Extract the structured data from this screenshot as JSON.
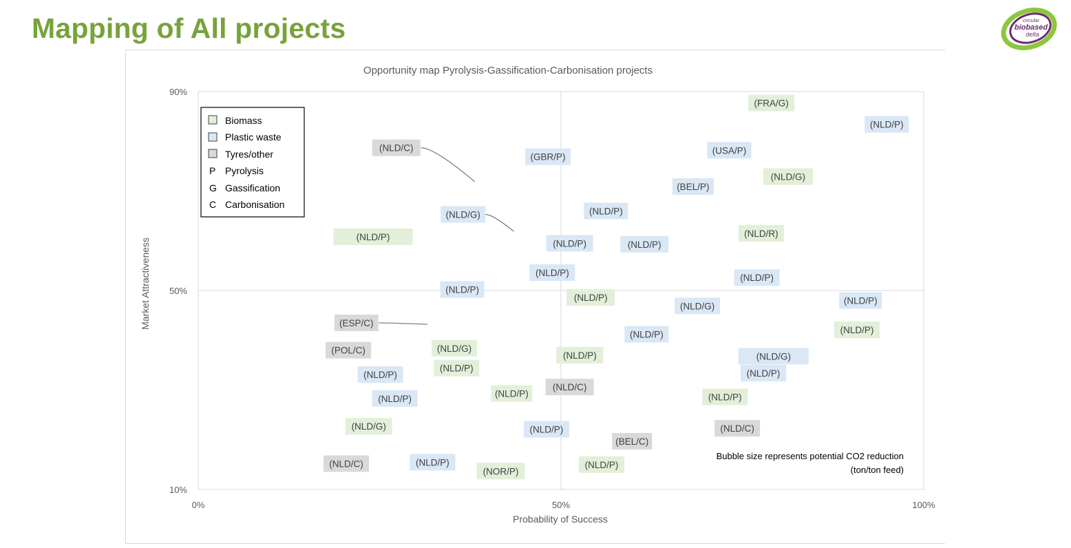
{
  "slide_title": "Mapping of All projects",
  "logo": {
    "line1": "circular",
    "line2": "biobased",
    "line3": "delta"
  },
  "colors": {
    "biomass": "#e2efd9",
    "plastic": "#dae7f5",
    "tyres": "#d9d9d9",
    "title": "#77a33a"
  },
  "chart_data": {
    "type": "scatter",
    "title": "Opportunity map Pyrolysis-Gassification-Carbonisation projects",
    "xlabel": "Probability of Success",
    "ylabel": "Market Attractiveness",
    "xlim": [
      0,
      100
    ],
    "ylim": [
      10,
      90
    ],
    "x_ticks": [
      "0%",
      "50%",
      "100%"
    ],
    "y_ticks": [
      "10%",
      "50%",
      "90%"
    ],
    "legend": {
      "placement": "top-left",
      "items": [
        {
          "symbol": "box",
          "category": "biomass",
          "label": "Biomass"
        },
        {
          "symbol": "box",
          "category": "plastic",
          "label": "Plastic waste"
        },
        {
          "symbol": "box",
          "category": "tyres",
          "label": "Tyres/other"
        },
        {
          "symbol": "P",
          "label": "Pyrolysis"
        },
        {
          "symbol": "G",
          "label": "Gassification"
        },
        {
          "symbol": "C",
          "label": "Carbonisation"
        }
      ]
    },
    "annotation": "Bubble size represents potential CO2 reduction (ton/ton feed)",
    "points": [
      {
        "label": "(FRA/G)",
        "category": "biomass",
        "x": 79,
        "y": 87.7,
        "w": 67
      },
      {
        "label": "(NLD/P)",
        "category": "plastic",
        "x": 94.9,
        "y": 83.4,
        "w": 64
      },
      {
        "label": "(USA/P)",
        "category": "plastic",
        "x": 73.2,
        "y": 78.2,
        "w": 64
      },
      {
        "label": "(NLD/C)",
        "category": "tyres",
        "x": 27.3,
        "y": 78.7,
        "w": 70
      },
      {
        "label": "(GBR/P)",
        "category": "plastic",
        "x": 48.2,
        "y": 76.9,
        "w": 66
      },
      {
        "label": "(NLD/G)",
        "category": "biomass",
        "x": 81.3,
        "y": 72.9,
        "w": 72
      },
      {
        "label": "(BEL/P)",
        "category": "plastic",
        "x": 68.2,
        "y": 70.9,
        "w": 60
      },
      {
        "label": "(NLD/P)",
        "category": "plastic",
        "x": 56.2,
        "y": 66,
        "w": 64
      },
      {
        "label": "(NLD/G)",
        "category": "plastic",
        "x": 36.5,
        "y": 65.3,
        "w": 65
      },
      {
        "label": "(NLD/R)",
        "category": "biomass",
        "x": 77.6,
        "y": 61.5,
        "w": 66
      },
      {
        "label": "(NLD/P)",
        "category": "biomass",
        "x": 24.1,
        "y": 60.8,
        "w": 115
      },
      {
        "label": "(NLD/P)",
        "category": "plastic",
        "x": 51.2,
        "y": 59.5,
        "w": 68
      },
      {
        "label": "(NLD/P)",
        "category": "plastic",
        "x": 61.5,
        "y": 59.3,
        "w": 70
      },
      {
        "label": "(NLD/P)",
        "category": "plastic",
        "x": 48.8,
        "y": 53.6,
        "w": 66
      },
      {
        "label": "(NLD/P)",
        "category": "plastic",
        "x": 77,
        "y": 52.6,
        "w": 66
      },
      {
        "label": "(NLD/P)",
        "category": "plastic",
        "x": 36.4,
        "y": 50.2,
        "w": 64
      },
      {
        "label": "(NLD/P)",
        "category": "biomass",
        "x": 54.1,
        "y": 48.6,
        "w": 70
      },
      {
        "label": "(NLD/P)",
        "category": "plastic",
        "x": 91.3,
        "y": 48,
        "w": 62
      },
      {
        "label": "(NLD/G)",
        "category": "plastic",
        "x": 68.8,
        "y": 46.9,
        "w": 66
      },
      {
        "label": "(ESP/C)",
        "category": "tyres",
        "x": 21.8,
        "y": 43.5,
        "w": 64
      },
      {
        "label": "(NLD/P)",
        "category": "biomass",
        "x": 90.8,
        "y": 42.1,
        "w": 66
      },
      {
        "label": "(NLD/P)",
        "category": "plastic",
        "x": 61.8,
        "y": 41.2,
        "w": 64
      },
      {
        "label": "(NLD/G)",
        "category": "biomass",
        "x": 35.3,
        "y": 38.4,
        "w": 66
      },
      {
        "label": "(POL/C)",
        "category": "tyres",
        "x": 20.7,
        "y": 38,
        "w": 66
      },
      {
        "label": "(NLD/P)",
        "category": "biomass",
        "x": 52.6,
        "y": 37,
        "w": 68
      },
      {
        "label": "(NLD/G)",
        "category": "plastic",
        "x": 79.3,
        "y": 36.8,
        "w": 102
      },
      {
        "label": "(NLD/P)",
        "category": "biomass",
        "x": 35.6,
        "y": 34.4,
        "w": 66
      },
      {
        "label": "(NLD/P)",
        "category": "plastic",
        "x": 77.9,
        "y": 33.4,
        "w": 66
      },
      {
        "label": "(NLD/P)",
        "category": "plastic",
        "x": 25.1,
        "y": 33.1,
        "w": 66
      },
      {
        "label": "(NLD/C)",
        "category": "tyres",
        "x": 51.2,
        "y": 30.6,
        "w": 70
      },
      {
        "label": "(NLD/P)",
        "category": "biomass",
        "x": 43.2,
        "y": 29.3,
        "w": 60
      },
      {
        "label": "(NLD/P)",
        "category": "biomass",
        "x": 72.6,
        "y": 28.6,
        "w": 66
      },
      {
        "label": "(NLD/P)",
        "category": "plastic",
        "x": 27.1,
        "y": 28.3,
        "w": 66
      },
      {
        "label": "(NLD/G)",
        "category": "biomass",
        "x": 23.5,
        "y": 22.7,
        "w": 68
      },
      {
        "label": "(NLD/P)",
        "category": "plastic",
        "x": 48,
        "y": 22.1,
        "w": 66
      },
      {
        "label": "(NLD/C)",
        "category": "tyres",
        "x": 74.3,
        "y": 22.3,
        "w": 66
      },
      {
        "label": "(BEL/C)",
        "category": "tyres",
        "x": 59.8,
        "y": 19.7,
        "w": 58
      },
      {
        "label": "(NLD/C)",
        "category": "tyres",
        "x": 20.4,
        "y": 15.2,
        "w": 66
      },
      {
        "label": "(NLD/P)",
        "category": "plastic",
        "x": 32.3,
        "y": 15.5,
        "w": 66
      },
      {
        "label": "(NLD/P)",
        "category": "biomass",
        "x": 55.6,
        "y": 15,
        "w": 66
      },
      {
        "label": "(NOR/P)",
        "category": "biomass",
        "x": 41.7,
        "y": 13.7,
        "w": 70
      }
    ],
    "leader_lines": [
      {
        "from": [
          30.7,
          78.7
        ],
        "to": [
          38.1,
          71.9
        ]
      },
      {
        "from": [
          39.6,
          65.3
        ],
        "to": [
          43.5,
          61.9
        ]
      },
      {
        "from": [
          24.9,
          43.5
        ],
        "to": [
          31.6,
          43.2
        ]
      }
    ]
  }
}
